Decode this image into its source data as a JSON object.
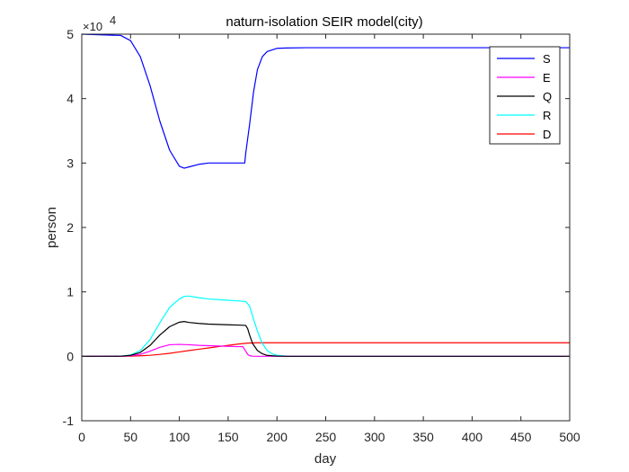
{
  "chart_data": {
    "type": "line",
    "title": "naturn-isolation SEIR model(city)",
    "xlabel": "day",
    "ylabel": "person",
    "xlim": [
      0,
      500
    ],
    "ylim": [
      -10000,
      50000
    ],
    "x_ticks": [
      "0",
      "50",
      "100",
      "150",
      "200",
      "250",
      "300",
      "350",
      "400",
      "450",
      "500"
    ],
    "y_ticks": [
      "-1",
      "0",
      "1",
      "2",
      "3",
      "4",
      "5"
    ],
    "y_exponent": {
      "base": "×10",
      "power": "4"
    },
    "grid": false,
    "legend_position": "top-right",
    "series": [
      {
        "name": "S",
        "color": "#0000ff",
        "x": [
          0,
          40,
          50,
          60,
          70,
          80,
          90,
          100,
          105,
          110,
          120,
          130,
          140,
          150,
          160,
          167,
          168,
          172,
          176,
          180,
          185,
          190,
          200,
          210,
          230,
          300,
          500
        ],
        "y": [
          50000,
          49800,
          49000,
          46500,
          42000,
          36500,
          32000,
          29500,
          29200,
          29400,
          29800,
          30000,
          30000,
          30000,
          30000,
          30000,
          31500,
          36000,
          41000,
          44500,
          46500,
          47300,
          47800,
          47850,
          47900,
          47900,
          47900
        ]
      },
      {
        "name": "E",
        "color": "#ff00ff",
        "x": [
          0,
          40,
          50,
          60,
          70,
          80,
          90,
          100,
          110,
          120,
          130,
          140,
          150,
          160,
          165,
          168,
          170,
          172,
          175,
          180,
          500
        ],
        "y": [
          0,
          10,
          80,
          300,
          800,
          1400,
          1800,
          1850,
          1800,
          1700,
          1650,
          1600,
          1550,
          1500,
          1500,
          800,
          300,
          100,
          20,
          0,
          0
        ]
      },
      {
        "name": "Q",
        "color": "#000000",
        "x": [
          0,
          40,
          50,
          60,
          70,
          80,
          90,
          100,
          105,
          110,
          120,
          130,
          140,
          150,
          160,
          168,
          170,
          172,
          175,
          180,
          185,
          190,
          200,
          210,
          500
        ],
        "y": [
          0,
          20,
          150,
          600,
          1700,
          3300,
          4600,
          5300,
          5400,
          5250,
          5100,
          5000,
          4950,
          4900,
          4850,
          4800,
          4300,
          3300,
          2000,
          900,
          400,
          150,
          40,
          0,
          0
        ]
      },
      {
        "name": "R",
        "color": "#00ffff",
        "x": [
          0,
          40,
          50,
          60,
          70,
          80,
          90,
          100,
          105,
          110,
          120,
          130,
          140,
          150,
          160,
          168,
          172,
          176,
          180,
          185,
          190,
          195,
          200,
          210,
          220,
          500
        ],
        "y": [
          0,
          30,
          200,
          900,
          2600,
          5200,
          7600,
          8900,
          9300,
          9350,
          9100,
          8900,
          8800,
          8700,
          8600,
          8500,
          7800,
          5800,
          3900,
          2000,
          900,
          400,
          150,
          30,
          0,
          0
        ]
      },
      {
        "name": "D",
        "color": "#ff0000",
        "x": [
          0,
          50,
          60,
          70,
          80,
          90,
          100,
          110,
          120,
          130,
          140,
          150,
          160,
          170,
          180,
          500
        ],
        "y": [
          0,
          20,
          80,
          160,
          300,
          470,
          680,
          900,
          1100,
          1300,
          1500,
          1700,
          1900,
          2050,
          2100,
          2100
        ]
      }
    ]
  }
}
